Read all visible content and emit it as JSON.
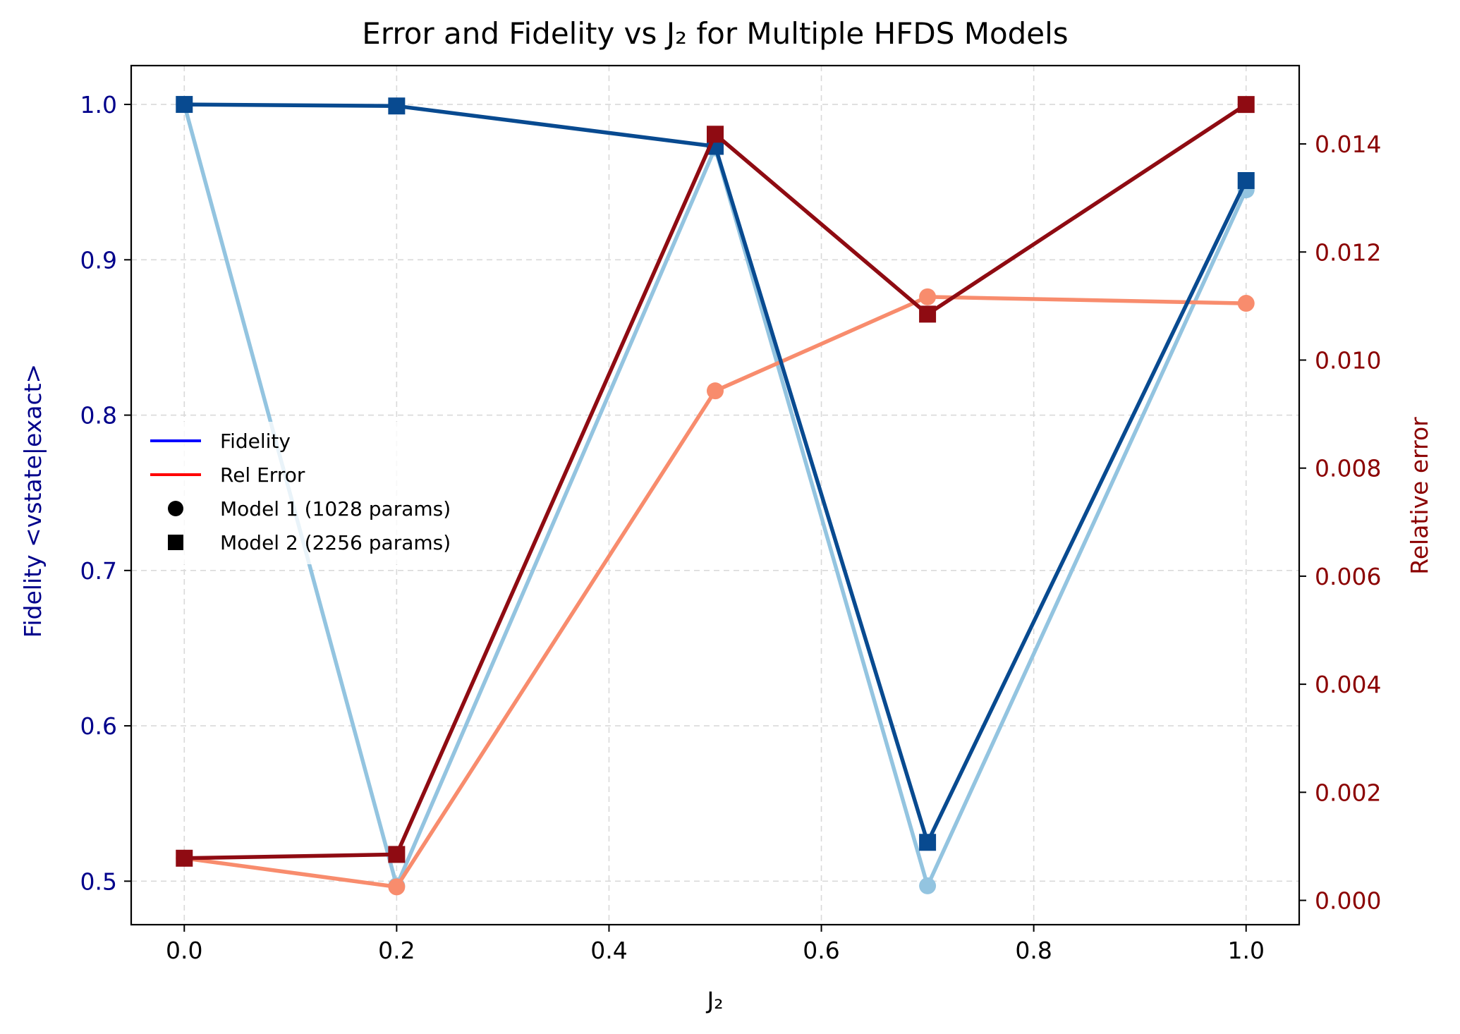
{
  "chart_data": {
    "type": "line",
    "title": "Error and Fidelity vs J₂ for Multiple HFDS Models",
    "xlabel": "J₂",
    "ylabel_left": "Fidelity <vstate|exact>",
    "ylabel_right": "Relative error",
    "x": [
      0.0,
      0.2,
      0.5,
      0.7,
      1.0
    ],
    "xlim": [
      -0.05,
      1.05
    ],
    "ylim_left": [
      0.472,
      1.025
    ],
    "ylim_right": [
      -0.00045,
      0.01545
    ],
    "xticks": [
      0.0,
      0.2,
      0.4,
      0.6,
      0.8,
      1.0
    ],
    "xtick_labels": [
      "0.0",
      "0.2",
      "0.4",
      "0.6",
      "0.8",
      "1.0"
    ],
    "yticks_left": [
      0.5,
      0.6,
      0.7,
      0.8,
      0.9,
      1.0
    ],
    "ytick_labels_left": [
      "0.5",
      "0.6",
      "0.7",
      "0.8",
      "0.9",
      "1.0"
    ],
    "yticks_right": [
      0.0,
      0.002,
      0.004,
      0.006,
      0.008,
      0.01,
      0.012,
      0.014
    ],
    "ytick_labels_right": [
      "0.000",
      "0.002",
      "0.004",
      "0.006",
      "0.008",
      "0.010",
      "0.012",
      "0.014"
    ],
    "grid": true,
    "legend_placement": "center-left",
    "legend": [
      {
        "label": "Fidelity",
        "kind": "line",
        "color": "#0000ff"
      },
      {
        "label": "Rel Error",
        "kind": "line",
        "color": "#ff0000"
      },
      {
        "label": "Model 1 (1028 params)",
        "kind": "circle",
        "color": "#000000"
      },
      {
        "label": "Model 2 (2256 params)",
        "kind": "square",
        "color": "#000000"
      }
    ],
    "series": [
      {
        "metric": "fidelity",
        "model": 1,
        "axis": "left",
        "marker": "circle",
        "color": "#93c4e0",
        "values": [
          1.0,
          0.497,
          0.972,
          0.497,
          0.945
        ]
      },
      {
        "metric": "relerror",
        "model": 1,
        "axis": "right",
        "marker": "circle",
        "color": "#f88c6d",
        "values": [
          0.00078,
          0.00025,
          0.00943,
          0.01117,
          0.01105
        ]
      },
      {
        "metric": "fidelity",
        "model": 2,
        "axis": "left",
        "marker": "square",
        "color": "#084a90",
        "values": [
          1.0,
          0.999,
          0.973,
          0.525,
          0.951
        ]
      },
      {
        "metric": "relerror",
        "model": 2,
        "axis": "right",
        "marker": "square",
        "color": "#8f0b12",
        "values": [
          0.00078,
          0.00085,
          0.01418,
          0.01085,
          0.01473
        ]
      }
    ],
    "colors": {
      "left_axis": "#00008b",
      "right_axis": "#8b0000",
      "grid": "#d9d9d9",
      "frame": "#000000"
    }
  }
}
